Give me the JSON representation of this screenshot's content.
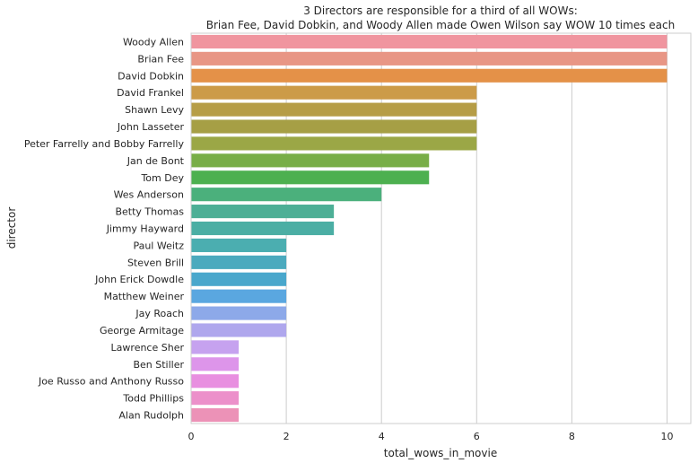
{
  "chart_data": {
    "type": "bar",
    "orientation": "horizontal",
    "title_lines": [
      "3 Directors are responsible for a third of all WOWs:",
      "Brian Fee, David Dobkin, and Woody Allen made Owen Wilson say WOW 10 times each"
    ],
    "xlabel": "total_wows_in_movie",
    "ylabel": "director",
    "xlim": [
      0,
      10.5
    ],
    "xticks": [
      0,
      2,
      4,
      6,
      8,
      10
    ],
    "grid": true,
    "categories": [
      "Woody Allen",
      "Brian Fee",
      "David Dobkin",
      "David Frankel",
      "Shawn Levy",
      "John Lasseter",
      "Peter Farrelly and Bobby Farrelly",
      "Jan de Bont",
      "Tom Dey",
      "Wes Anderson",
      "Betty Thomas",
      "Jimmy Hayward",
      "Paul Weitz",
      "Steven Brill",
      "John Erick Dowdle",
      "Matthew Weiner",
      "Jay Roach",
      "George Armitage",
      "Lawrence Sher",
      "Ben Stiller",
      "Joe Russo and Anthony Russo",
      "Todd Phillips",
      "Alan Rudolph"
    ],
    "values": [
      10,
      10,
      10,
      6,
      6,
      6,
      6,
      5,
      5,
      4,
      3,
      3,
      2,
      2,
      2,
      2,
      2,
      2,
      1,
      1,
      1,
      1,
      1
    ],
    "colors": [
      "#f0959f",
      "#e89685",
      "#e49148",
      "#cc9b48",
      "#b69d46",
      "#a69f45",
      "#9ba746",
      "#78ae47",
      "#4db050",
      "#4bb07c",
      "#4daf96",
      "#4baea4",
      "#4baeb0",
      "#4baabe",
      "#49a7cc",
      "#5aa7e0",
      "#8da9e9",
      "#afa7ed",
      "#c6a2ef",
      "#dd95ea",
      "#e88fe0",
      "#ec90ca",
      "#ec92b7"
    ]
  }
}
